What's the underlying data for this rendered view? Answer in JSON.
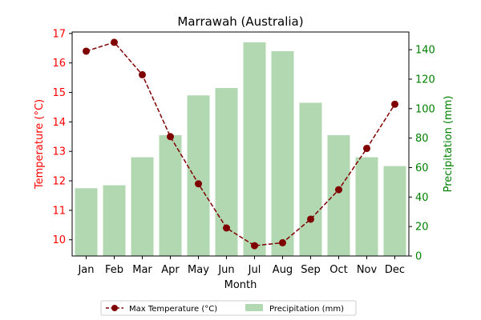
{
  "chart_data": {
    "type": "bar+line",
    "title": "Marrawah (Australia)",
    "xlabel": "Month",
    "ylabel_left": "Temperature (°C)",
    "ylabel_right": "Precipitation (mm)",
    "categories": [
      "Jan",
      "Feb",
      "Mar",
      "Apr",
      "May",
      "Jun",
      "Jul",
      "Aug",
      "Sep",
      "Oct",
      "Nov",
      "Dec"
    ],
    "series": [
      {
        "name": "Max Temperature (°C)",
        "type": "line",
        "axis": "left",
        "values": [
          16.4,
          16.7,
          15.6,
          13.5,
          11.9,
          10.4,
          9.8,
          9.9,
          10.7,
          11.7,
          13.1,
          14.6
        ]
      },
      {
        "name": "Precipitation (mm)",
        "type": "bar",
        "axis": "right",
        "values": [
          46,
          48,
          67,
          82,
          109,
          114,
          145,
          139,
          104,
          82,
          67,
          61
        ]
      }
    ],
    "ylim_left": [
      9.45,
      17.05
    ],
    "ylim_right": [
      0,
      152
    ],
    "yticks_left": [
      "10",
      "11",
      "12",
      "13",
      "14",
      "15",
      "16",
      "17"
    ],
    "yticks_right": [
      "0",
      "20",
      "40",
      "60",
      "80",
      "100",
      "120",
      "140"
    ],
    "legend_position": "bottom-center",
    "grid": false,
    "colors": {
      "line": "#7f0000",
      "bars": "#b2d8b2",
      "left_axis": "#ff0000",
      "right_axis": "#008000",
      "frame": "#000000"
    }
  }
}
